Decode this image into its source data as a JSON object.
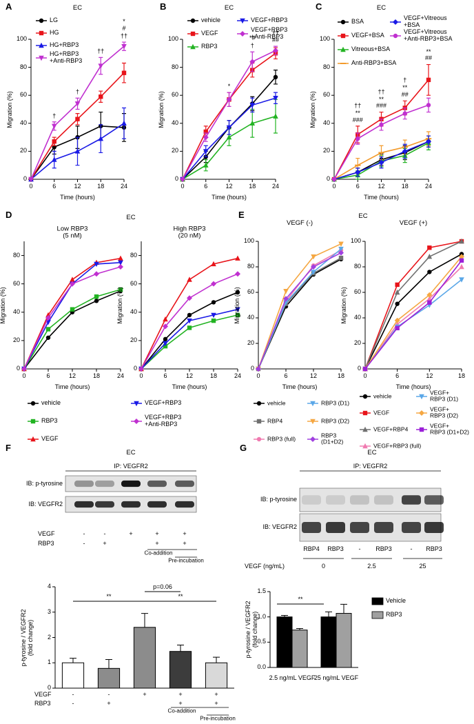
{
  "chart_data": [
    {
      "type": "line",
      "panel": "A",
      "title": "EC",
      "xlabel": "Time (hours)",
      "ylabel": "Migration (%)",
      "x": [
        0,
        6,
        12,
        18,
        24
      ],
      "xlim": [
        0,
        24
      ],
      "xticks": [
        0,
        6,
        12,
        18,
        24
      ],
      "ylim": [
        0,
        100
      ],
      "yticks": [
        0,
        20,
        40,
        60,
        80,
        100
      ],
      "legend": "upper left",
      "series": [
        {
          "name": "LG",
          "color": "#000000",
          "marker": "circle",
          "values": [
            0,
            23,
            30,
            38,
            37
          ],
          "errors": [
            0,
            5,
            8,
            10,
            10
          ]
        },
        {
          "name": "HG",
          "color": "#e8141a",
          "marker": "square",
          "values": [
            0,
            27,
            43,
            59,
            76
          ],
          "errors": [
            0,
            3,
            4,
            4,
            7
          ]
        },
        {
          "name": "HG+RBP3",
          "color": "#1a1ae6",
          "marker": "triangle",
          "values": [
            0,
            14,
            20,
            29,
            40
          ],
          "errors": [
            0,
            6,
            10,
            10,
            11
          ]
        },
        {
          "name": "HG+RBP3\n+Anti-RBP3",
          "color": "#c030d0",
          "marker": "triangle-down",
          "values": [
            0,
            38,
            54,
            81,
            95
          ],
          "errors": [
            0,
            3,
            4,
            6,
            3
          ]
        }
      ],
      "annotations": [
        {
          "x": 6,
          "text": "†"
        },
        {
          "x": 12,
          "text": "†"
        },
        {
          "x": 18,
          "text": "††"
        },
        {
          "x": 24,
          "text": "††"
        },
        {
          "x": 24,
          "text": "*\n#"
        }
      ]
    },
    {
      "type": "line",
      "panel": "B",
      "title": "EC",
      "xlabel": "Time (hours)",
      "ylabel": "Migration (%)",
      "x": [
        0,
        6,
        12,
        18,
        24
      ],
      "xlim": [
        0,
        24
      ],
      "xticks": [
        0,
        6,
        12,
        18,
        24
      ],
      "ylim": [
        0,
        100
      ],
      "yticks": [
        0,
        20,
        40,
        60,
        80,
        100
      ],
      "legend": "upper left",
      "series": [
        {
          "name": "vehicle",
          "color": "#000000",
          "marker": "circle",
          "values": [
            0,
            16,
            37,
            54,
            73
          ],
          "errors": [
            0,
            4,
            5,
            5,
            5
          ]
        },
        {
          "name": "VEGF",
          "color": "#e8141a",
          "marker": "square",
          "values": [
            0,
            34,
            57,
            78,
            90
          ],
          "errors": [
            0,
            4,
            5,
            5,
            4
          ]
        },
        {
          "name": "RBP3",
          "color": "#22b322",
          "marker": "triangle",
          "values": [
            0,
            10,
            30,
            40,
            45
          ],
          "errors": [
            0,
            4,
            6,
            10,
            12
          ]
        },
        {
          "name": "VEGF+RBP3",
          "color": "#1a1ae6",
          "marker": "triangle-down",
          "values": [
            0,
            20,
            37,
            53,
            58
          ],
          "errors": [
            0,
            4,
            5,
            5,
            4
          ]
        },
        {
          "name": "VEGF+RBP3\n+Anti-RBP3",
          "color": "#c030d0",
          "marker": "diamond",
          "values": [
            0,
            30,
            57,
            84,
            92
          ],
          "errors": [
            0,
            3,
            5,
            7,
            3
          ]
        }
      ],
      "annotations": [
        {
          "x": 12,
          "text": "*"
        },
        {
          "x": 18,
          "text": "†"
        },
        {
          "x": 18,
          "text": "*#"
        },
        {
          "x": 24,
          "text": "††\n##"
        }
      ]
    },
    {
      "type": "line",
      "panel": "C",
      "title": "EC",
      "xlabel": "Time (hours)",
      "ylabel": "Migration (%)",
      "x": [
        0,
        6,
        12,
        18,
        24
      ],
      "xlim": [
        0,
        24
      ],
      "xticks": [
        0,
        6,
        12,
        18,
        24
      ],
      "ylim": [
        0,
        100
      ],
      "yticks": [
        0,
        20,
        40,
        60,
        80,
        100
      ],
      "legend": "upper left",
      "series": [
        {
          "name": "BSA",
          "color": "#000000",
          "marker": "circle",
          "values": [
            0,
            5,
            14,
            19,
            27
          ],
          "errors": [
            0,
            3,
            4,
            5,
            4
          ]
        },
        {
          "name": "VEGF+BSA",
          "color": "#e8141a",
          "marker": "square",
          "values": [
            0,
            32,
            43,
            51,
            71
          ],
          "errors": [
            0,
            6,
            5,
            5,
            11
          ]
        },
        {
          "name": "Vitreous+BSA",
          "color": "#22b322",
          "marker": "triangle",
          "values": [
            0,
            3,
            13,
            17,
            26
          ],
          "errors": [
            0,
            3,
            4,
            5,
            5
          ]
        },
        {
          "name": "Anti-RBP3+BSA",
          "color": "#f39a2b",
          "marker": "dash",
          "values": [
            0,
            10,
            19,
            23,
            29
          ],
          "errors": [
            0,
            5,
            5,
            5,
            5
          ]
        },
        {
          "name": "VEGF+Vitreous\n+BSA",
          "color": "#1a1ae6",
          "marker": "diamond",
          "values": [
            0,
            5,
            12,
            20,
            27
          ],
          "errors": [
            0,
            3,
            4,
            5,
            4
          ]
        },
        {
          "name": "VEGF+Vitreous\n+Anti-RBP3+BSA",
          "color": "#c030d0",
          "marker": "circle",
          "values": [
            0,
            29,
            39,
            47,
            53
          ],
          "errors": [
            0,
            4,
            4,
            4,
            5
          ]
        }
      ],
      "annotations": [
        {
          "x": 6,
          "text": "**\n###"
        },
        {
          "x": 6,
          "text": "††"
        },
        {
          "x": 12,
          "text": "**\n###"
        },
        {
          "x": 12,
          "text": "††"
        },
        {
          "x": 18,
          "text": "**\n##"
        },
        {
          "x": 18,
          "text": "†"
        },
        {
          "x": 24,
          "text": "**\n##"
        }
      ]
    },
    {
      "type": "line",
      "panel": "D",
      "heading": "EC",
      "title": "Low RBP3\n(5 nM)",
      "xlabel": "Time (hours)",
      "ylabel": "Migration (%)",
      "x": [
        0,
        6,
        12,
        18,
        24
      ],
      "xlim": [
        0,
        24
      ],
      "xticks": [
        0,
        6,
        12,
        18,
        24
      ],
      "ylim": [
        0,
        90
      ],
      "yticks": [
        0,
        20,
        40,
        60,
        80
      ],
      "legend": "below",
      "series": [
        {
          "name": "vehicle",
          "color": "#000000",
          "marker": "circle",
          "values": [
            0,
            22,
            40,
            48,
            55
          ]
        },
        {
          "name": "RBP3",
          "color": "#22b322",
          "marker": "square",
          "values": [
            0,
            28,
            42,
            51,
            56
          ]
        },
        {
          "name": "VEGF",
          "color": "#e8141a",
          "marker": "triangle",
          "values": [
            0,
            38,
            63,
            75,
            78
          ]
        },
        {
          "name": "VEGF+RBP3",
          "color": "#1a1ae6",
          "marker": "triangle-down",
          "values": [
            0,
            33,
            60,
            74,
            75
          ]
        },
        {
          "name": "VEGF+RBP3\n+Anti-RBP3",
          "color": "#c030d0",
          "marker": "diamond",
          "values": [
            0,
            36,
            60,
            67,
            72
          ]
        }
      ]
    },
    {
      "type": "line",
      "title": "High RBP3\n(20 nM)",
      "xlabel": "Time (hours)",
      "ylabel": "Migration (%)",
      "x": [
        0,
        6,
        12,
        18,
        24
      ],
      "xlim": [
        0,
        24
      ],
      "xticks": [
        0,
        6,
        12,
        18,
        24
      ],
      "ylim": [
        0,
        90
      ],
      "yticks": [
        0,
        20,
        40,
        60,
        80
      ],
      "series": [
        {
          "color": "#000000",
          "marker": "circle",
          "values": [
            0,
            21,
            38,
            47,
            54
          ]
        },
        {
          "color": "#22b322",
          "marker": "square",
          "values": [
            0,
            16,
            29,
            34,
            38
          ]
        },
        {
          "color": "#e8141a",
          "marker": "triangle",
          "values": [
            0,
            35,
            63,
            74,
            78
          ]
        },
        {
          "color": "#1a1ae6",
          "marker": "triangle-down",
          "values": [
            0,
            18,
            34,
            38,
            42
          ]
        },
        {
          "color": "#c030d0",
          "marker": "diamond",
          "values": [
            0,
            30,
            50,
            60,
            67
          ]
        }
      ]
    },
    {
      "type": "line",
      "panel": "E",
      "heading": "EC",
      "title": "VEGF (-)",
      "xlabel": "Time (hours)",
      "ylabel": "Migration (%)",
      "x": [
        0,
        6,
        12,
        18
      ],
      "xlim": [
        0,
        18
      ],
      "xticks": [
        0,
        6,
        12,
        18
      ],
      "ylim": [
        0,
        100
      ],
      "yticks": [
        0,
        20,
        40,
        60,
        80,
        100
      ],
      "legend": "below",
      "series": [
        {
          "name": "vehicle",
          "color": "#000000",
          "marker": "circle",
          "values": [
            0,
            49,
            74,
            86
          ]
        },
        {
          "name": "RBP4",
          "color": "#707070",
          "marker": "square",
          "values": [
            0,
            51,
            75,
            87
          ]
        },
        {
          "name": "RBP3 (full)",
          "color": "#f07ab0",
          "marker": "circle",
          "values": [
            0,
            53,
            81,
            93
          ]
        },
        {
          "name": "RBP3 (D1)",
          "color": "#5aa7e8",
          "marker": "triangle-down",
          "values": [
            0,
            52,
            76,
            94
          ]
        },
        {
          "name": "RBP3 (D2)",
          "color": "#f5a742",
          "marker": "triangle-down",
          "values": [
            0,
            61,
            88,
            98
          ]
        },
        {
          "name": "RBP3\n(D1+D2)",
          "color": "#a040e0",
          "marker": "diamond",
          "values": [
            0,
            55,
            80,
            91
          ]
        }
      ]
    },
    {
      "type": "line",
      "title": "VEGF (+)",
      "xlabel": "Time (hours)",
      "ylabel": "Migration (%)",
      "x": [
        0,
        6,
        12,
        18
      ],
      "xlim": [
        0,
        18
      ],
      "xticks": [
        0,
        6,
        12,
        18
      ],
      "ylim": [
        0,
        100
      ],
      "yticks": [
        0,
        20,
        40,
        60,
        80,
        100
      ],
      "legend": "below",
      "series": [
        {
          "name": "vehicle",
          "color": "#000000",
          "marker": "circle",
          "values": [
            0,
            51,
            76,
            90
          ]
        },
        {
          "name": "VEGF",
          "color": "#e8141a",
          "marker": "square",
          "values": [
            0,
            66,
            95,
            100
          ]
        },
        {
          "name": "VEGF+RBP4",
          "color": "#707070",
          "marker": "triangle",
          "values": [
            0,
            60,
            88,
            100
          ]
        },
        {
          "name": "VEGF+RBP3 (full)",
          "color": "#f07ab0",
          "marker": "triangle",
          "values": [
            0,
            35,
            55,
            80
          ]
        },
        {
          "name": "VEGF+\nRBP3 (D1)",
          "color": "#5aa7e8",
          "marker": "triangle-down",
          "values": [
            0,
            33,
            50,
            70
          ]
        },
        {
          "name": "VEGF+\nRBP3 (D2)",
          "color": "#f5a742",
          "marker": "diamond",
          "values": [
            0,
            38,
            58,
            88
          ]
        },
        {
          "name": "VEGF+\nRBP3 (D1+D2)",
          "color": "#9b1fd8",
          "marker": "square",
          "values": [
            0,
            32,
            52,
            85
          ]
        }
      ]
    },
    {
      "type": "bar",
      "ylabel": "p-tyrosine / VEGFR2\n(fold change)",
      "categories": [
        null,
        null,
        null,
        null,
        null
      ],
      "values": [
        1.0,
        0.78,
        2.4,
        1.45,
        1.0
      ],
      "errors": [
        0.18,
        0.35,
        0.55,
        0.25,
        0.22
      ],
      "colors": [
        "#ffffff",
        "#8c8c8c",
        "#8c8c8c",
        "#3c3c3c",
        "#d9d9d9"
      ],
      "ylim": [
        0,
        4
      ],
      "yticks": [
        0,
        1,
        2,
        3,
        4
      ],
      "annotations": [
        "**",
        "p=0.06",
        "**"
      ],
      "treatments": [
        {
          "label": "VEGF",
          "cells": [
            "-",
            "-",
            "+",
            "+",
            "+"
          ]
        },
        {
          "label": "RBP3",
          "cells": [
            "-",
            "+",
            null,
            "+",
            "+"
          ]
        }
      ],
      "notes": [
        null,
        null,
        null,
        "Co-addition",
        "Pre-incubation"
      ]
    },
    {
      "type": "bar",
      "ylabel": "p-tyrosine / VEGFR2\n(fold change)",
      "categories": [
        "2.5 ng/mL VEGF",
        "25 ng/mL VEGF"
      ],
      "series": [
        {
          "name": "Vehicle",
          "color": "#000000",
          "values": [
            1.0,
            1.0
          ],
          "errors": [
            0.03,
            0.1
          ]
        },
        {
          "name": "RBP3",
          "color": "#a0a0a0",
          "values": [
            0.74,
            1.07
          ],
          "errors": [
            0.03,
            0.18
          ]
        }
      ],
      "ylim": [
        0,
        1.5
      ],
      "yticks": [
        {
          "value": 0,
          "label": "0.0"
        },
        0.5,
        {
          "value": 1,
          "label": "1.0"
        },
        1.5
      ],
      "legend": "upper right",
      "annotations": [
        "**"
      ]
    }
  ],
  "blots": [
    {
      "panel": "F",
      "title": "EC",
      "ip": "IP: VEGFR2",
      "rows": [
        "IB: p-tyrosine",
        "IB: VEGFR2"
      ],
      "treatments": [
        {
          "label": "VEGF",
          "cells": [
            "-",
            "-",
            "+",
            "+",
            "+"
          ]
        },
        {
          "label": "RBP3",
          "cells": [
            "-",
            "+",
            null,
            "+",
            "+"
          ]
        }
      ],
      "notes": [
        null,
        null,
        null,
        "Co-addition",
        "Pre-incubation"
      ]
    },
    {
      "panel": "G",
      "title": "EC",
      "ip": "IP: VEGFR2",
      "rows": [
        "IB: p-tyrosine",
        "IB: VEGFR2"
      ],
      "lanes": [
        "RBP4",
        "RBP3",
        "-",
        "RBP3",
        "-",
        "RBP3"
      ],
      "dose": {
        "label": "VEGF (ng/mL)",
        "values": [
          "0",
          "2.5",
          "25"
        ]
      }
    }
  ]
}
